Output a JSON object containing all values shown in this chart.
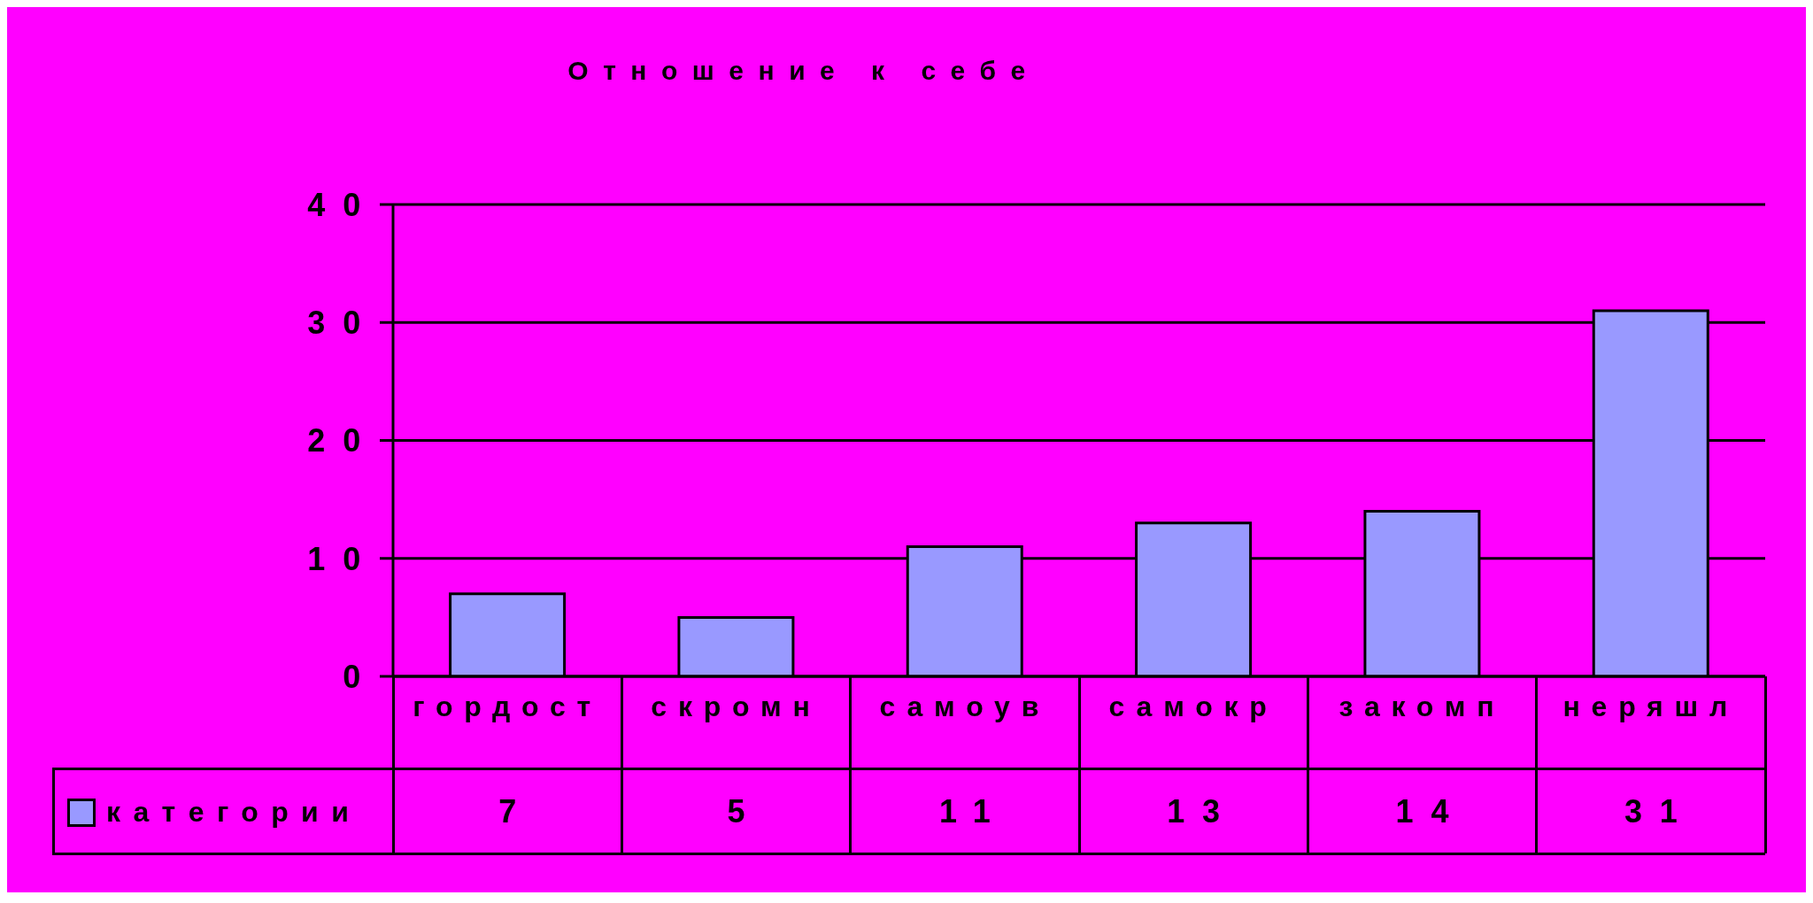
{
  "chart_data": {
    "type": "bar",
    "title": "Отношение к себе",
    "categories": [
      "гордост",
      "скромн",
      "самоув",
      "самокр",
      "закомп",
      "неряшл"
    ],
    "series": [
      {
        "name": "категории",
        "color": "#9999ff",
        "values": [
          7,
          5,
          11,
          13,
          14,
          31
        ]
      }
    ],
    "ylim": [
      0,
      40
    ],
    "yticks": [
      0,
      10,
      20,
      30,
      40
    ],
    "grid": "y",
    "legend": "bottom",
    "data_labels": true
  }
}
